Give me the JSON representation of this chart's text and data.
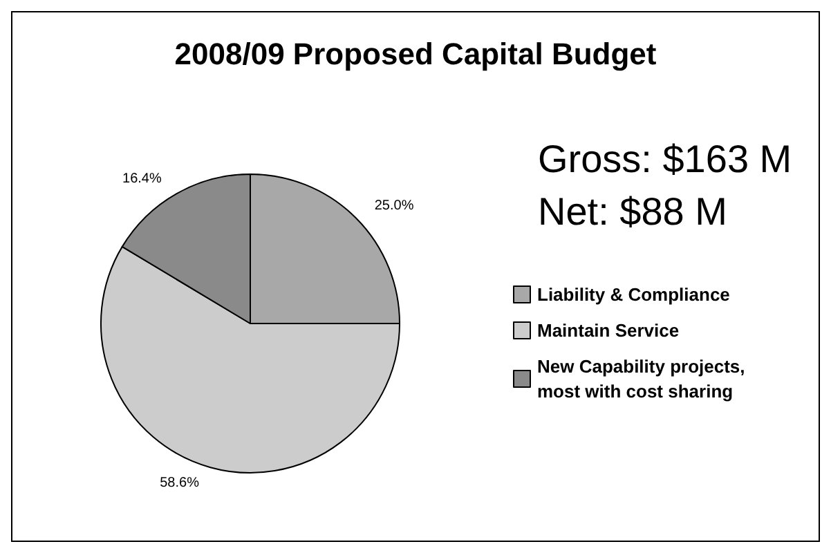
{
  "chart_data": {
    "type": "pie",
    "title": "2008/09 Proposed Capital Budget",
    "annotations": [
      "Gross: $163 M",
      "Net: $88 M"
    ],
    "categories": [
      "Liability & Compliance",
      "Maintain Service",
      "New Capability projects, most with cost sharing"
    ],
    "values": [
      25.0,
      58.6,
      16.4
    ],
    "value_labels": [
      "25.0%",
      "58.6%",
      "16.4%"
    ],
    "colors": [
      "#a8a8a8",
      "#cccccc",
      "#8a8a8a"
    ],
    "legend": "right"
  }
}
